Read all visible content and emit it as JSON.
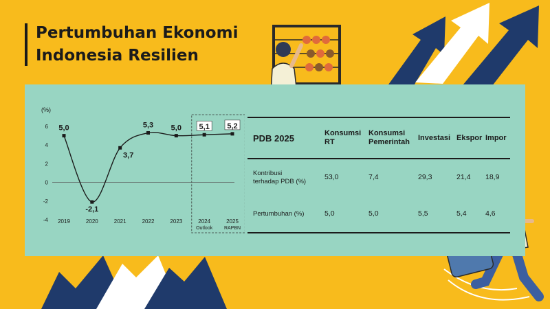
{
  "title": {
    "line1": "Pertumbuhan Ekonomi",
    "line2": "Indonesia Resilien"
  },
  "colors": {
    "background": "#f8bb1c",
    "panel": "#98d5c2",
    "navy": "#1f3a6b",
    "text": "#1b1b1b",
    "white": "#ffffff"
  },
  "chart_data": {
    "type": "line",
    "ylabel": "(%)",
    "yticks": [
      6,
      4,
      2,
      0,
      -2,
      -4
    ],
    "ylim": [
      -4,
      6
    ],
    "categories": [
      "2019",
      "2020",
      "2021",
      "2022",
      "2023",
      "2024",
      "2025"
    ],
    "category_sublabels": [
      "",
      "",
      "",
      "",
      "",
      "Outlook",
      "RAPBN"
    ],
    "values": [
      5.0,
      -2.1,
      3.7,
      5.3,
      5.0,
      5.1,
      5.2
    ],
    "value_labels": [
      "5,0",
      "-2,1",
      "3,7",
      "5,3",
      "5,0",
      "5,1",
      "5,2"
    ],
    "boxed_labels": [
      5,
      6
    ],
    "projection_start_index": 5,
    "grid": false,
    "legend": "none"
  },
  "table": {
    "corner": "PDB 2025",
    "columns": [
      {
        "line1": "Konsumsi",
        "line2": "RT"
      },
      {
        "line1": "Konsumsi",
        "line2": "Pemerintah"
      },
      {
        "line1": "Investasi",
        "line2": ""
      },
      {
        "line1": "Ekspor",
        "line2": ""
      },
      {
        "line1": "Impor",
        "line2": ""
      }
    ],
    "rows": [
      {
        "label1": "Kontribusi",
        "label2": "terhadap PDB (%)",
        "values": [
          "53,0",
          "7,4",
          "29,3",
          "21,4",
          "18,9"
        ]
      },
      {
        "label1": "Pertumbuhan (%)",
        "label2": "",
        "values": [
          "5,0",
          "5,0",
          "5,5",
          "5,4",
          "4,6"
        ]
      }
    ]
  },
  "illustrations": [
    "rising-arrows-top-right",
    "rising-arrows-bottom-left",
    "abacus-worker",
    "running-businessman"
  ]
}
